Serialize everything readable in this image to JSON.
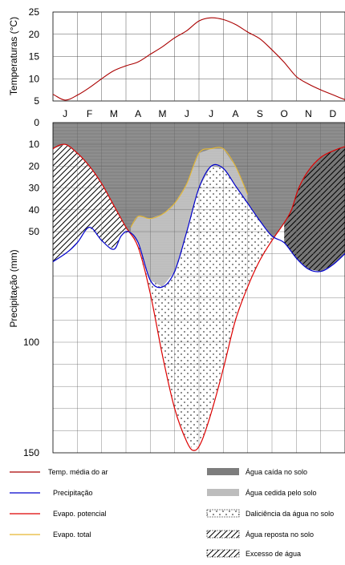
{
  "chart_data": [
    {
      "type": "line",
      "ylabel": "Temperaturas (°C)",
      "months": [
        "J",
        "F",
        "M",
        "A",
        "M",
        "J",
        "J",
        "A",
        "S",
        "O",
        "N",
        "D",
        "J"
      ],
      "yticks": [
        5,
        10,
        15,
        20,
        25
      ],
      "ylim": [
        5,
        25
      ],
      "grid": true,
      "series": [
        {
          "name": "Temp. média do ar",
          "color": "#aa0000",
          "x": [
            -1,
            -0.5,
            0,
            0.5,
            1,
            1.5,
            2,
            2.5,
            3,
            3.5,
            4,
            4.5,
            5,
            5.5,
            6,
            6.5,
            7,
            7.5,
            8,
            8.5,
            9,
            9.5,
            10,
            10.5,
            11,
            11.5,
            12
          ],
          "y": [
            7.8,
            6.5,
            5.2,
            6.3,
            8.0,
            10.0,
            11.8,
            12.9,
            13.8,
            15.5,
            17.2,
            19.2,
            20.8,
            23.0,
            23.7,
            23.3,
            22.2,
            20.5,
            19.0,
            16.5,
            13.7,
            10.5,
            8.8,
            7.5,
            6.4,
            5.3,
            4.7
          ]
        }
      ]
    },
    {
      "type": "area",
      "ylabel": "Precipitação (mm)",
      "months": [
        "J",
        "F",
        "M",
        "A",
        "M",
        "J",
        "J",
        "A",
        "S",
        "O",
        "N",
        "D",
        "J"
      ],
      "yticks": [
        0,
        10,
        20,
        30,
        40,
        50,
        100,
        150
      ],
      "ylim": [
        0,
        150
      ],
      "y_inverted": true,
      "grid": true,
      "series": [
        {
          "name": "Precipitação",
          "color": "#0000cc",
          "x": [
            -1,
            0,
            0.5,
            1,
            1.5,
            2,
            2.3,
            2.6,
            3,
            3.5,
            4,
            4.5,
            5,
            5.5,
            6,
            6.5,
            7,
            7.5,
            8,
            8.5,
            9,
            9.5,
            10,
            10.5,
            11,
            11.5,
            12
          ],
          "y": [
            67,
            60,
            55,
            48,
            54,
            58,
            52,
            50,
            55,
            72,
            75,
            68,
            50,
            30,
            20,
            21,
            29,
            37,
            45,
            52,
            55,
            62,
            67,
            68,
            65,
            60,
            55
          ]
        },
        {
          "name": "Evapo. potencial",
          "color": "#dd0000",
          "x": [
            -1,
            -0.5,
            0,
            0.5,
            1,
            1.5,
            2,
            2.5,
            3,
            3.5,
            4,
            4.5,
            5,
            5.3,
            5.6,
            6,
            6.5,
            7,
            7.5,
            8,
            8.5,
            9,
            9.3,
            9.6,
            10,
            10.5,
            11,
            11.5,
            12
          ],
          "y": [
            18,
            12,
            10,
            14,
            20,
            28,
            38,
            48,
            57,
            78,
            106,
            130,
            145,
            149,
            145,
            132,
            112,
            90,
            75,
            63,
            54,
            46,
            40,
            30,
            22,
            16,
            13,
            11,
            10
          ]
        },
        {
          "name": "Evapo. total",
          "color": "#e6b830",
          "x": [
            2.7,
            3,
            3.5,
            4,
            4.5,
            5,
            5.5,
            6,
            6.5,
            7,
            7.5
          ],
          "y": [
            48,
            43,
            44,
            42,
            37,
            28,
            14,
            12,
            12,
            20,
            33
          ]
        }
      ],
      "legend": [
        {
          "label": "Temp. média do ar",
          "kind": "line",
          "color": "#aa0000"
        },
        {
          "label": "Precipitação",
          "kind": "line",
          "color": "#0000cc"
        },
        {
          "label": "Evapo. potencial",
          "kind": "line",
          "color": "#dd0000"
        },
        {
          "label": "Evapo. total",
          "kind": "line",
          "color": "#e6b830"
        },
        {
          "label": "Água caída no solo",
          "kind": "fill",
          "color": "#8a8a8a"
        },
        {
          "label": "Água cedida pelo solo",
          "kind": "fill",
          "color": "#bdbdbd"
        },
        {
          "label": "Daliciência da água no solo",
          "kind": "dots"
        },
        {
          "label": "Água reposta no solo",
          "kind": "hatch"
        },
        {
          "label": "Excesso de água",
          "kind": "hatch"
        }
      ],
      "legend_placement": "bottom"
    }
  ]
}
